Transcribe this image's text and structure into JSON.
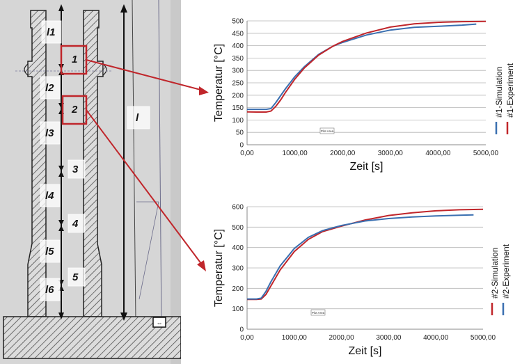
{
  "photo": {
    "left_labels": [
      "l1",
      "l2",
      "l3",
      "l4",
      "l5",
      "l6"
    ],
    "inner_labels": [
      "1",
      "2",
      "3",
      "4",
      "5"
    ],
    "length_label": "l",
    "highlight_color": "#c0262b"
  },
  "chart_data": [
    {
      "type": "line",
      "xlabel": "Zeit [s]",
      "ylabel": "Temperatur [°C]",
      "xlim": [
        0,
        5000
      ],
      "ylim": [
        0,
        500
      ],
      "x_ticks": [
        "0,00",
        "1000,00",
        "2000,00",
        "3000,00",
        "4000,00",
        "5000,00"
      ],
      "y_ticks": [
        "0",
        "50",
        "100",
        "150",
        "200",
        "250",
        "300",
        "350",
        "400",
        "450",
        "500"
      ],
      "grid": true,
      "legend_position": "right, vertical",
      "annotation": "Plot Area",
      "series": [
        {
          "name": "#1-Simulation",
          "color": "#3a6fb0",
          "x": [
            0,
            200,
            400,
            500,
            600,
            800,
            1000,
            1200,
            1500,
            1800,
            2000,
            2500,
            3000,
            3500,
            4000,
            4500,
            4800
          ],
          "y": [
            143,
            143,
            143,
            146,
            170,
            225,
            275,
            315,
            365,
            398,
            413,
            443,
            463,
            474,
            478,
            483,
            487
          ]
        },
        {
          "name": "#1-Experiment",
          "color": "#c0262b",
          "x": [
            0,
            200,
            400,
            500,
            600,
            700,
            800,
            1000,
            1200,
            1500,
            1800,
            2000,
            2500,
            3000,
            3500,
            4000,
            4500,
            5000
          ],
          "y": [
            133,
            132,
            132,
            136,
            155,
            180,
            210,
            265,
            310,
            362,
            398,
            417,
            451,
            475,
            488,
            494,
            497,
            498
          ]
        }
      ]
    },
    {
      "type": "line",
      "xlabel": "Zeit [s]",
      "ylabel": "Temperatur [°C]",
      "xlim": [
        0,
        5000
      ],
      "ylim": [
        0,
        600
      ],
      "x_ticks": [
        "0,00",
        "1000,00",
        "2000,00",
        "3000,00",
        "4000,00",
        "5000,00"
      ],
      "y_ticks": [
        "0",
        "100",
        "200",
        "300",
        "400",
        "500",
        "600"
      ],
      "grid": true,
      "legend_position": "right, vertical",
      "annotation": "Plot Area",
      "series": [
        {
          "name": "#2-Simulation",
          "color": "#c0262b",
          "x": [
            0,
            200,
            300,
            400,
            500,
            700,
            1000,
            1300,
            1600,
            2000,
            2500,
            3000,
            3500,
            4000,
            4500,
            5000
          ],
          "y": [
            146,
            146,
            148,
            170,
            210,
            290,
            380,
            440,
            478,
            505,
            535,
            557,
            570,
            580,
            585,
            587
          ]
        },
        {
          "name": "#2-Experiment",
          "color": "#3a6fb0",
          "x": [
            0,
            200,
            300,
            400,
            500,
            700,
            1000,
            1300,
            1600,
            2000,
            2500,
            3000,
            3500,
            4000,
            4500,
            4800
          ],
          "y": [
            148,
            148,
            152,
            185,
            230,
            310,
            395,
            450,
            483,
            508,
            530,
            542,
            550,
            555,
            558,
            560
          ]
        }
      ]
    }
  ]
}
